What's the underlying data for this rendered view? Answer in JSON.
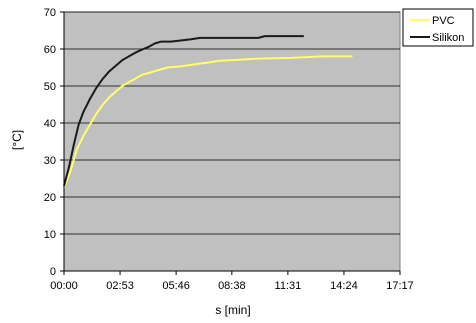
{
  "chart_data": {
    "type": "line",
    "title": "",
    "xlabel": "s [min]",
    "ylabel": "[°C]",
    "ylim": [
      0,
      70
    ],
    "xlim": [
      0,
      1037
    ],
    "y_ticks": [
      0,
      10,
      20,
      30,
      40,
      50,
      60,
      70
    ],
    "x_ticks": [
      {
        "value": 0,
        "label": "00:00"
      },
      {
        "value": 173,
        "label": "02:53"
      },
      {
        "value": 346,
        "label": "05:46"
      },
      {
        "value": 518,
        "label": "08:38"
      },
      {
        "value": 691,
        "label": "11:31"
      },
      {
        "value": 864,
        "label": "14:24"
      },
      {
        "value": 1037,
        "label": "17:17"
      }
    ],
    "grid": "horizontal",
    "legend_position": "right",
    "plot_background": "#c0c0c0",
    "series": [
      {
        "name": "PVC",
        "color": "#ffff66",
        "points": [
          [
            0,
            22.5
          ],
          [
            20,
            27
          ],
          [
            40,
            33
          ],
          [
            60,
            36.5
          ],
          [
            80,
            39.5
          ],
          [
            100,
            42.5
          ],
          [
            120,
            45
          ],
          [
            140,
            47
          ],
          [
            160,
            48.5
          ],
          [
            180,
            50
          ],
          [
            200,
            51
          ],
          [
            220,
            52
          ],
          [
            240,
            53
          ],
          [
            260,
            53.5
          ],
          [
            280,
            54
          ],
          [
            300,
            54.5
          ],
          [
            320,
            55
          ],
          [
            360,
            55.3
          ],
          [
            400,
            55.8
          ],
          [
            440,
            56.3
          ],
          [
            480,
            56.8
          ],
          [
            520,
            57
          ],
          [
            560,
            57.2
          ],
          [
            600,
            57.4
          ],
          [
            650,
            57.5
          ],
          [
            700,
            57.6
          ],
          [
            750,
            57.8
          ],
          [
            800,
            58
          ],
          [
            850,
            58
          ],
          [
            890,
            58
          ]
        ]
      },
      {
        "name": "Silikon",
        "color": "#1a1a1a",
        "points": [
          [
            0,
            23
          ],
          [
            15,
            28
          ],
          [
            30,
            34
          ],
          [
            45,
            39.5
          ],
          [
            60,
            43
          ],
          [
            80,
            46.5
          ],
          [
            100,
            49.5
          ],
          [
            120,
            52
          ],
          [
            140,
            54
          ],
          [
            160,
            55.5
          ],
          [
            180,
            57
          ],
          [
            200,
            58
          ],
          [
            220,
            59
          ],
          [
            240,
            59.8
          ],
          [
            260,
            60.5
          ],
          [
            280,
            61.5
          ],
          [
            300,
            62
          ],
          [
            330,
            62
          ],
          [
            360,
            62.3
          ],
          [
            390,
            62.6
          ],
          [
            420,
            63
          ],
          [
            480,
            63
          ],
          [
            540,
            63
          ],
          [
            600,
            63
          ],
          [
            620,
            63.5
          ],
          [
            680,
            63.5
          ],
          [
            740,
            63.5
          ]
        ]
      }
    ]
  }
}
